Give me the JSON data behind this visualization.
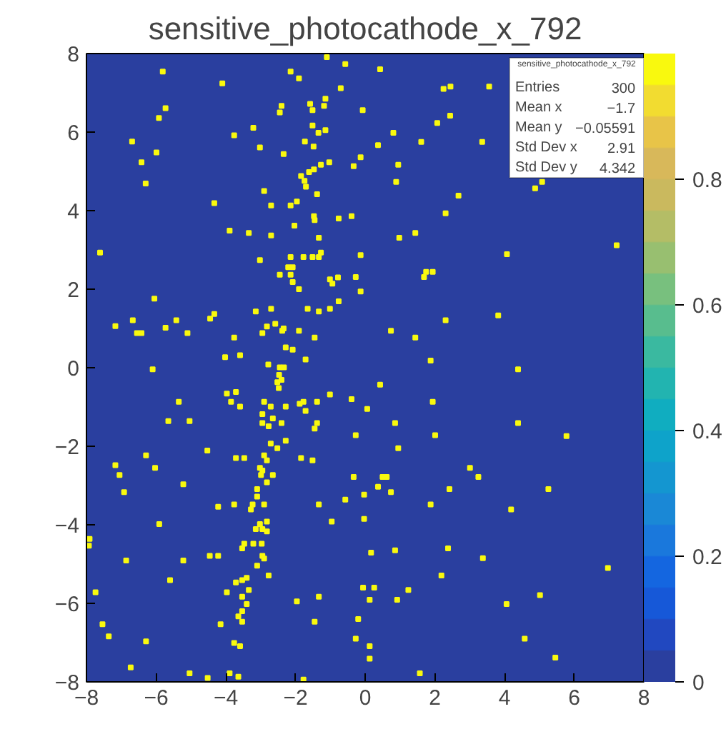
{
  "chart_data": {
    "type": "scatter",
    "title": "sensitive_photocathode_x_792",
    "x": [
      -1.1,
      -0.57,
      -5.81,
      -2.14,
      -1.9,
      -4.1,
      -0.7,
      -1.14,
      -2.4,
      -1.58,
      -1.18,
      -5.73,
      -2.45,
      -1.51,
      -0.07,
      -5.92,
      -3.21,
      -1.51,
      -1.14,
      -1.34,
      -3.76,
      -6.69,
      -1.73,
      -1.48,
      -3.02,
      -5.99,
      -2.34,
      -0.13,
      -6.42,
      -1.03,
      -1.27,
      -0.33,
      -1.47,
      -1.61,
      -1.84,
      -1.74,
      -6.3,
      -1.7,
      -2.9,
      -1.38,
      -4.33,
      -2.7,
      -2.14,
      -1.96,
      -1.47,
      -1.45,
      -0.76,
      -0.39,
      -2.03,
      -3.89,
      -3.34,
      -2.7,
      -1.33,
      -7.61,
      -1.27,
      -3.02,
      -2.14,
      -1.77,
      -1.51,
      -1.33,
      -0.13,
      -2.21,
      -2.08,
      -2.45,
      -2.14,
      -1.01,
      -0.78,
      -0.27,
      -2.08,
      -0.94,
      -1.9,
      -0.13,
      -6.05,
      -0.76,
      -6.67,
      -5.42,
      -4.45,
      -4.33,
      -3.14,
      -2.7,
      -1.65,
      -1.33,
      -1.01,
      -7.17,
      -2.82,
      -2.58,
      -2.34,
      -2.38,
      -1.9,
      -5.73,
      -6.55,
      -6.42,
      -5.1,
      -2.95,
      -3.76,
      -1.45,
      -2.28,
      -2.08,
      -4.02,
      -3.59,
      -1.71,
      -2.78,
      -2.45,
      -2.33,
      0.43,
      2.25,
      2.45,
      3.56,
      2.44,
      2.07,
      0.81,
      0.37,
      1.61,
      3.36,
      0.95,
      0.89,
      5.08,
      4.88,
      2.68,
      2.31,
      1.44,
      0.98,
      4.07,
      7.22,
      1.75,
      1.94,
      1.69,
      2.31,
      3.82,
      0.74,
      1.44,
      1.88,
      5.78,
      6.97,
      5.46,
      -6.1,
      -2.47,
      -2.4,
      -2.52,
      -2.48,
      -3.97,
      -3.71,
      -1.01,
      -0.39,
      -5.35,
      -3.85,
      -2.9,
      -1.77,
      -1.38,
      -3.59,
      -2.71,
      -2.28,
      -1.88,
      -1.71,
      -2.95,
      -2.65,
      -5.65,
      -5.04,
      -2.95,
      -2.4,
      -2.77,
      -1.38,
      -1.45,
      -0.27,
      -2.28,
      -2.71,
      -2.52,
      -4.53,
      -6.29,
      -3.71,
      -3.47,
      -2.9,
      -2.82,
      -1.84,
      -1.51,
      -7.17,
      -6.03,
      -3.02,
      -2.95,
      -2.99,
      -2.65,
      -7.05,
      -0.33,
      -2.82,
      -5.22,
      -3.1,
      -6.92,
      -3.1,
      -0.57,
      -0.03,
      -3.23,
      -2.9,
      -1.33,
      -3.76,
      -4.22,
      -3.28,
      -2.82,
      -3.02,
      -0.96,
      -0.03,
      -5.91,
      -3.14,
      -2.95,
      -2.82,
      -7.91,
      -7.93,
      -3.47,
      -3.21,
      -2.97,
      -3.53,
      -4.46,
      -4.22,
      -2.95,
      -2.9,
      -6.86,
      -5.22,
      -3.1,
      -2.77,
      -3.53,
      -3.4,
      -5.6,
      -3.71,
      -7.74,
      -3.34,
      -3.97,
      -0.06,
      -3.53,
      -1.96,
      -1.33,
      -3.4,
      -3.53,
      -3.64,
      -0.2,
      -7.54,
      -4.15,
      -3.53,
      -1.45,
      -7.36,
      -6.29,
      -3.76,
      -3.59,
      -0.27,
      -6.73,
      -5.04,
      -3.89,
      -3.64,
      -4.52,
      -1.77,
      4.39,
      0.43,
      1.94,
      0.06,
      0.86,
      4.39,
      2.01,
      0.95,
      3.01,
      3.25,
      0.5,
      0.62,
      0.37,
      0.74,
      2.42,
      5.26,
      1.88,
      4.19,
      0.17,
      0.86,
      2.38,
      3.38,
      2.19,
      0.26,
      0.13,
      0.92,
      1.24,
      5.02,
      4.06,
      4.58,
      0.13,
      0.13,
      1.57
    ],
    "values": [
      7.91,
      7.73,
      7.54,
      7.54,
      7.37,
      7.24,
      7.12,
      6.85,
      6.67,
      6.72,
      6.67,
      6.61,
      6.5,
      6.56,
      6.56,
      6.36,
      6.11,
      6.17,
      6.05,
      5.98,
      5.92,
      5.76,
      5.76,
      5.63,
      5.61,
      5.48,
      5.44,
      5.36,
      5.23,
      5.23,
      5.17,
      5.13,
      5.05,
      4.98,
      4.88,
      4.76,
      4.69,
      4.61,
      4.5,
      4.42,
      4.19,
      4.13,
      4.13,
      4.23,
      3.86,
      3.76,
      3.8,
      3.86,
      3.62,
      3.49,
      3.43,
      3.37,
      3.31,
      2.93,
      2.93,
      2.74,
      2.82,
      2.82,
      2.82,
      2.82,
      2.87,
      2.56,
      2.56,
      2.37,
      2.37,
      2.25,
      2.3,
      2.31,
      2.18,
      2.14,
      2.0,
      1.94,
      1.76,
      1.69,
      1.21,
      1.21,
      1.25,
      1.37,
      1.43,
      1.5,
      1.5,
      1.43,
      1.5,
      1.06,
      1.05,
      1.12,
      1.0,
      0.94,
      0.94,
      1.02,
      0.88,
      0.88,
      0.88,
      0.88,
      0.77,
      0.77,
      0.52,
      0.46,
      0.27,
      0.32,
      0.21,
      0.08,
      0.01,
      0.01,
      7.6,
      7.1,
      7.16,
      7.16,
      6.42,
      6.23,
      5.98,
      5.67,
      5.75,
      5.75,
      5.17,
      4.73,
      4.73,
      4.57,
      4.38,
      3.93,
      3.43,
      3.31,
      2.89,
      3.12,
      2.44,
      2.44,
      2.31,
      1.21,
      1.33,
      0.94,
      0.77,
      0.18,
      -1.74,
      -5.1,
      -7.38,
      -0.04,
      -0.18,
      -0.31,
      -0.37,
      -0.52,
      -0.66,
      -0.62,
      -0.68,
      -0.8,
      -0.87,
      -0.87,
      -0.87,
      -0.87,
      -0.87,
      -0.99,
      -0.99,
      -0.99,
      -0.92,
      -1.1,
      -1.18,
      -1.29,
      -1.36,
      -1.36,
      -1.41,
      -1.41,
      -1.49,
      -1.41,
      -1.55,
      -1.72,
      -1.86,
      -1.93,
      -2.05,
      -2.11,
      -2.23,
      -2.3,
      -2.3,
      -2.23,
      -2.36,
      -2.3,
      -2.36,
      -2.48,
      -2.55,
      -2.55,
      -2.62,
      -2.73,
      -2.73,
      -2.73,
      -2.78,
      -2.92,
      -2.97,
      -3.09,
      -3.17,
      -3.28,
      -3.36,
      -3.23,
      -3.48,
      -3.48,
      -3.48,
      -3.48,
      -3.54,
      -3.61,
      -3.92,
      -3.98,
      -3.92,
      -3.85,
      -3.98,
      -4.11,
      -4.11,
      -4.17,
      -4.36,
      -4.53,
      -4.48,
      -4.48,
      -4.48,
      -4.6,
      -4.79,
      -4.79,
      -4.79,
      -4.86,
      -4.91,
      -4.91,
      -5.04,
      -5.29,
      -5.41,
      -5.35,
      -5.41,
      -5.47,
      -5.72,
      -5.66,
      -5.72,
      -5.6,
      -5.83,
      -5.95,
      -5.83,
      -6.02,
      -6.2,
      -6.33,
      -6.4,
      -6.53,
      -6.53,
      -6.47,
      -6.47,
      -6.84,
      -6.97,
      -7.01,
      -7.09,
      -6.9,
      -7.63,
      -7.78,
      -7.78,
      -7.87,
      -7.9,
      -7.94,
      -0.04,
      -0.43,
      -0.87,
      -1.05,
      -1.41,
      -1.41,
      -1.72,
      -2.05,
      -2.55,
      -2.78,
      -2.78,
      -2.78,
      -3.03,
      -3.17,
      -3.09,
      -3.09,
      -3.48,
      -3.61,
      -4.71,
      -4.65,
      -4.6,
      -4.85,
      -5.29,
      -5.6,
      -5.91,
      -5.91,
      -5.66,
      -5.79,
      -6.02,
      -6.9,
      -7.09,
      -7.41,
      -7.78
    ],
    "color": "#f9f90e",
    "marker": "square",
    "xlim": [
      -8,
      8
    ],
    "ylim": [
      -8,
      8
    ],
    "xticks": [
      -8,
      -6,
      -4,
      -2,
      0,
      2,
      4,
      6,
      8
    ],
    "yticks": [
      -8,
      -6,
      -4,
      -2,
      0,
      2,
      4,
      6,
      8
    ],
    "clim": [
      0,
      1
    ],
    "cticks": [
      0,
      0.2,
      0.4,
      0.6,
      0.8
    ],
    "grid": false,
    "annotations": [
      "sensitive_photocathode_x_792",
      "Entries",
      "300",
      "Mean x",
      "−1.7",
      "Mean y",
      "−0.05591",
      "Std Dev x",
      "2.91",
      "Std Dev y",
      "4.342"
    ]
  }
}
